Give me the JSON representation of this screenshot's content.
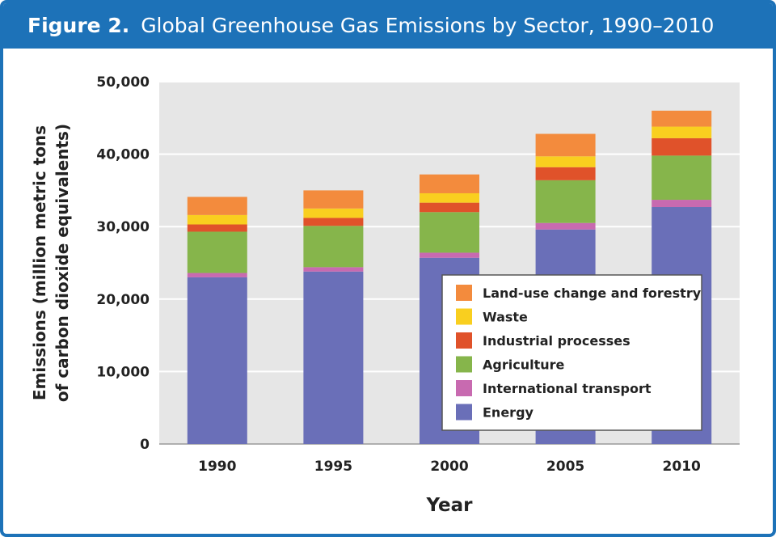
{
  "header": {
    "figure_label": "Figure 2.",
    "title": "Global Greenhouse Gas Emissions by Sector, 1990–2010"
  },
  "chart_data": {
    "type": "bar",
    "stacked": true,
    "categories": [
      "1990",
      "1995",
      "2000",
      "2005",
      "2010"
    ],
    "series": [
      {
        "name": "Energy",
        "color": "#6a6fb8",
        "values": [
          23000,
          23800,
          25700,
          29600,
          32700
        ]
      },
      {
        "name": "International transport",
        "color": "#c86ab0",
        "values": [
          600,
          600,
          700,
          900,
          1000
        ]
      },
      {
        "name": "Agriculture",
        "color": "#86b54b",
        "values": [
          5700,
          5700,
          5600,
          5900,
          6100
        ]
      },
      {
        "name": "Industrial processes",
        "color": "#e0522a",
        "values": [
          1000,
          1100,
          1300,
          1800,
          2400
        ]
      },
      {
        "name": "Waste",
        "color": "#f9cf1f",
        "values": [
          1300,
          1300,
          1300,
          1500,
          1600
        ]
      },
      {
        "name": "Land-use change and forestry",
        "color": "#f38b3d",
        "values": [
          2500,
          2500,
          2600,
          3100,
          2200
        ]
      }
    ],
    "xlabel": "Year",
    "ylabel_lines": [
      "Emissions (million metric tons",
      "of carbon dioxide equivalents)"
    ],
    "ylim": [
      0,
      50000
    ],
    "yticks": [
      0,
      10000,
      20000,
      30000,
      40000,
      50000
    ],
    "ytick_labels": [
      "0",
      "10,000",
      "20,000",
      "30,000",
      "40,000",
      "50,000"
    ],
    "grid": true,
    "legend_position": "bottom-right",
    "legend_order": [
      "Land-use change and forestry",
      "Waste",
      "Industrial processes",
      "Agriculture",
      "International transport",
      "Energy"
    ],
    "colors": {
      "plot_background": "#e6e6e6",
      "gridline": "#ffffff",
      "frame": "#1d72b8"
    }
  }
}
